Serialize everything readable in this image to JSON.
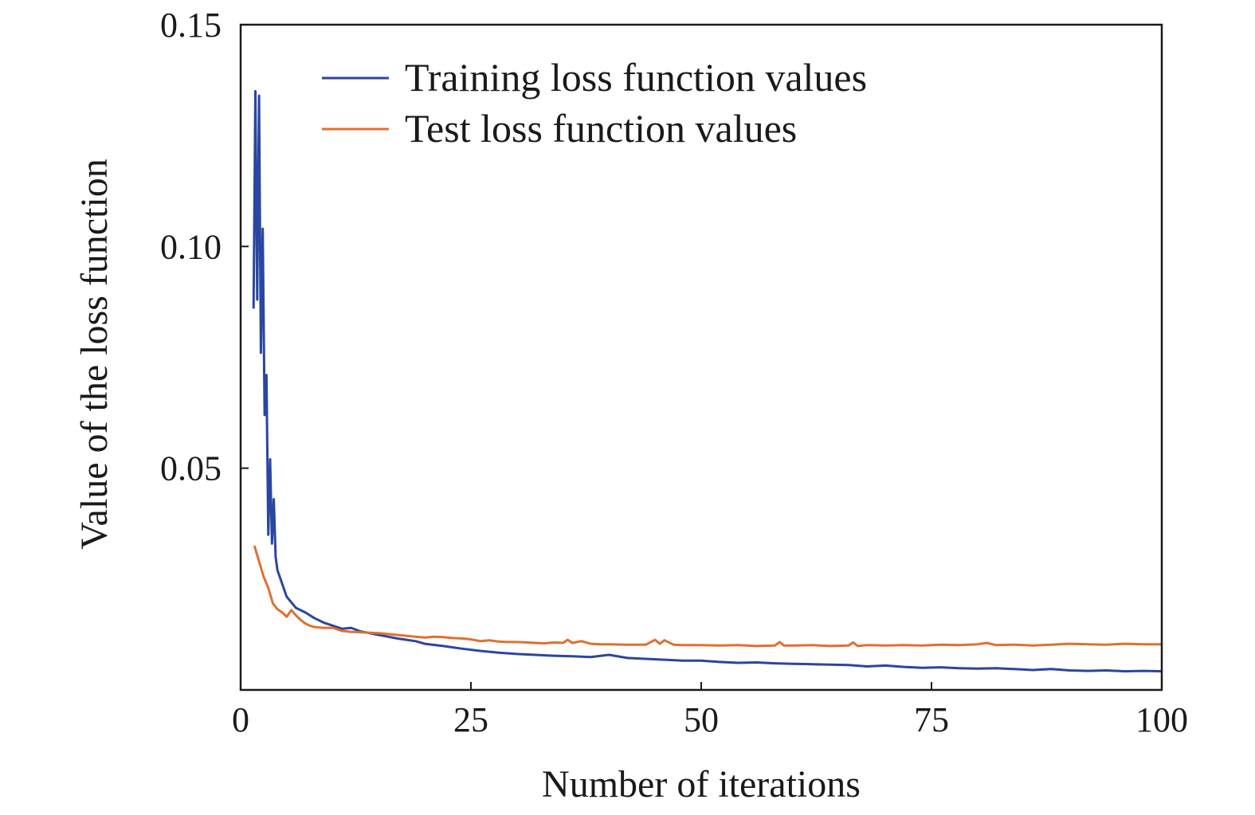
{
  "chart_data": {
    "type": "line",
    "title": "",
    "xlabel": "Number of iterations",
    "ylabel": "Value of the loss function",
    "xlim": [
      0,
      100
    ],
    "ylim": [
      0,
      0.15
    ],
    "x_ticks": [
      0,
      25,
      50,
      75,
      100
    ],
    "y_ticks": [
      0.05,
      0.1,
      0.15
    ],
    "x_tick_labels": [
      "0",
      "25",
      "50",
      "75",
      "100"
    ],
    "y_tick_labels": [
      "0.05",
      "0.10",
      "0.15"
    ],
    "grid": false,
    "legend_position": "top",
    "series": [
      {
        "name": "Training loss function values",
        "color": "#2a46a0",
        "x": [
          1.4,
          1.6,
          1.8,
          2.0,
          2.2,
          2.4,
          2.6,
          2.8,
          3.0,
          3.2,
          3.4,
          3.6,
          3.8,
          4.0,
          4.5,
          5,
          6,
          7,
          8,
          9,
          10,
          11,
          12,
          13,
          14,
          15,
          16,
          17,
          18,
          19,
          20,
          22,
          24,
          26,
          28,
          30,
          32,
          34,
          36,
          38,
          40,
          42,
          44,
          46,
          48,
          50,
          52,
          54,
          56,
          58,
          60,
          62,
          64,
          66,
          68,
          70,
          72,
          74,
          76,
          78,
          80,
          82,
          84,
          86,
          88,
          90,
          92,
          94,
          96,
          98,
          100
        ],
        "y": [
          0.086,
          0.135,
          0.088,
          0.134,
          0.076,
          0.104,
          0.062,
          0.071,
          0.035,
          0.052,
          0.033,
          0.043,
          0.03,
          0.027,
          0.024,
          0.021,
          0.0185,
          0.0175,
          0.0162,
          0.0152,
          0.0145,
          0.0138,
          0.014,
          0.0132,
          0.0128,
          0.0124,
          0.012,
          0.0116,
          0.0113,
          0.011,
          0.0104,
          0.0099,
          0.0093,
          0.0088,
          0.0084,
          0.0081,
          0.0079,
          0.0077,
          0.0076,
          0.0074,
          0.0079,
          0.0072,
          0.007,
          0.0068,
          0.0066,
          0.0066,
          0.0063,
          0.0061,
          0.0062,
          0.006,
          0.0059,
          0.0058,
          0.0057,
          0.0056,
          0.0053,
          0.0055,
          0.0052,
          0.005,
          0.0051,
          0.0049,
          0.0048,
          0.0049,
          0.0047,
          0.0045,
          0.0047,
          0.0044,
          0.0043,
          0.0044,
          0.0042,
          0.0043,
          0.0042
        ]
      },
      {
        "name": "Test loss function values",
        "color": "#e07030",
        "x": [
          1.5,
          2,
          2.5,
          3,
          3.5,
          4,
          4.5,
          5,
          5.5,
          6,
          6.5,
          7,
          7.5,
          8,
          9,
          10,
          11,
          12,
          13,
          14,
          15,
          16,
          17,
          18,
          19,
          20,
          21,
          22,
          23,
          24,
          25,
          26,
          27,
          28,
          29,
          30,
          31,
          32,
          33,
          34,
          35,
          35.5,
          36,
          37,
          38,
          39,
          40,
          42,
          44,
          45,
          45.5,
          46,
          47,
          48,
          50,
          52,
          54,
          56,
          58,
          58.5,
          59,
          60,
          62,
          64,
          66,
          66.5,
          67,
          68,
          70,
          72,
          74,
          76,
          78,
          80,
          81,
          82,
          84,
          86,
          88,
          90,
          92,
          94,
          96,
          98,
          100
        ],
        "y": [
          0.0325,
          0.029,
          0.0255,
          0.023,
          0.0195,
          0.0182,
          0.0175,
          0.0165,
          0.018,
          0.0168,
          0.0158,
          0.015,
          0.0145,
          0.0142,
          0.014,
          0.014,
          0.0133,
          0.0131,
          0.013,
          0.0129,
          0.0128,
          0.0126,
          0.0124,
          0.0122,
          0.012,
          0.0118,
          0.012,
          0.0119,
          0.0117,
          0.0116,
          0.0114,
          0.011,
          0.0112,
          0.0109,
          0.0108,
          0.0108,
          0.0107,
          0.0106,
          0.0105,
          0.0107,
          0.0106,
          0.0113,
          0.0106,
          0.011,
          0.0104,
          0.0103,
          0.0103,
          0.0102,
          0.0102,
          0.0113,
          0.0104,
          0.0112,
          0.0102,
          0.0101,
          0.0101,
          0.01,
          0.0101,
          0.0099,
          0.01,
          0.0108,
          0.01,
          0.01,
          0.0101,
          0.0099,
          0.01,
          0.0107,
          0.0099,
          0.0101,
          0.01,
          0.0101,
          0.01,
          0.0102,
          0.0101,
          0.0103,
          0.0106,
          0.0101,
          0.0102,
          0.01,
          0.0102,
          0.0104,
          0.0103,
          0.0102,
          0.0104,
          0.0103,
          0.0103
        ]
      }
    ]
  }
}
